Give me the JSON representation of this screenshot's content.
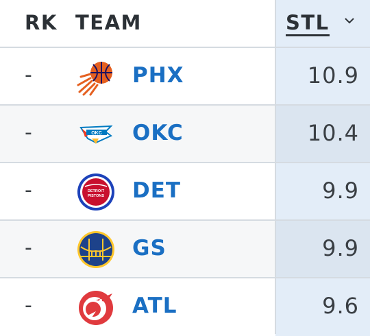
{
  "header": {
    "rank_label": "RK",
    "team_label": "TEAM",
    "stat_label": "STL"
  },
  "rows": [
    {
      "rank": "-",
      "team": "PHX",
      "stl": "10.9",
      "logo": "suns-logo-icon",
      "colors": [
        "#e56020",
        "#1d1160"
      ]
    },
    {
      "rank": "-",
      "team": "OKC",
      "stl": "10.4",
      "logo": "thunder-logo-icon",
      "colors": [
        "#007ac1",
        "#ef3b24"
      ]
    },
    {
      "rank": "-",
      "team": "DET",
      "stl": "9.9",
      "logo": "pistons-logo-icon",
      "colors": [
        "#c8102e",
        "#1d42ba"
      ]
    },
    {
      "rank": "-",
      "team": "GS",
      "stl": "9.9",
      "logo": "warriors-logo-icon",
      "colors": [
        "#1d428a",
        "#ffc72c"
      ]
    },
    {
      "rank": "-",
      "team": "ATL",
      "stl": "9.6",
      "logo": "hawks-logo-icon",
      "colors": [
        "#e03a3e",
        "#ffffff"
      ]
    }
  ],
  "colors": {
    "team_link": "#1a6fc3",
    "sorted_column_bg": "#e3edf8",
    "text": "#2c3136"
  }
}
